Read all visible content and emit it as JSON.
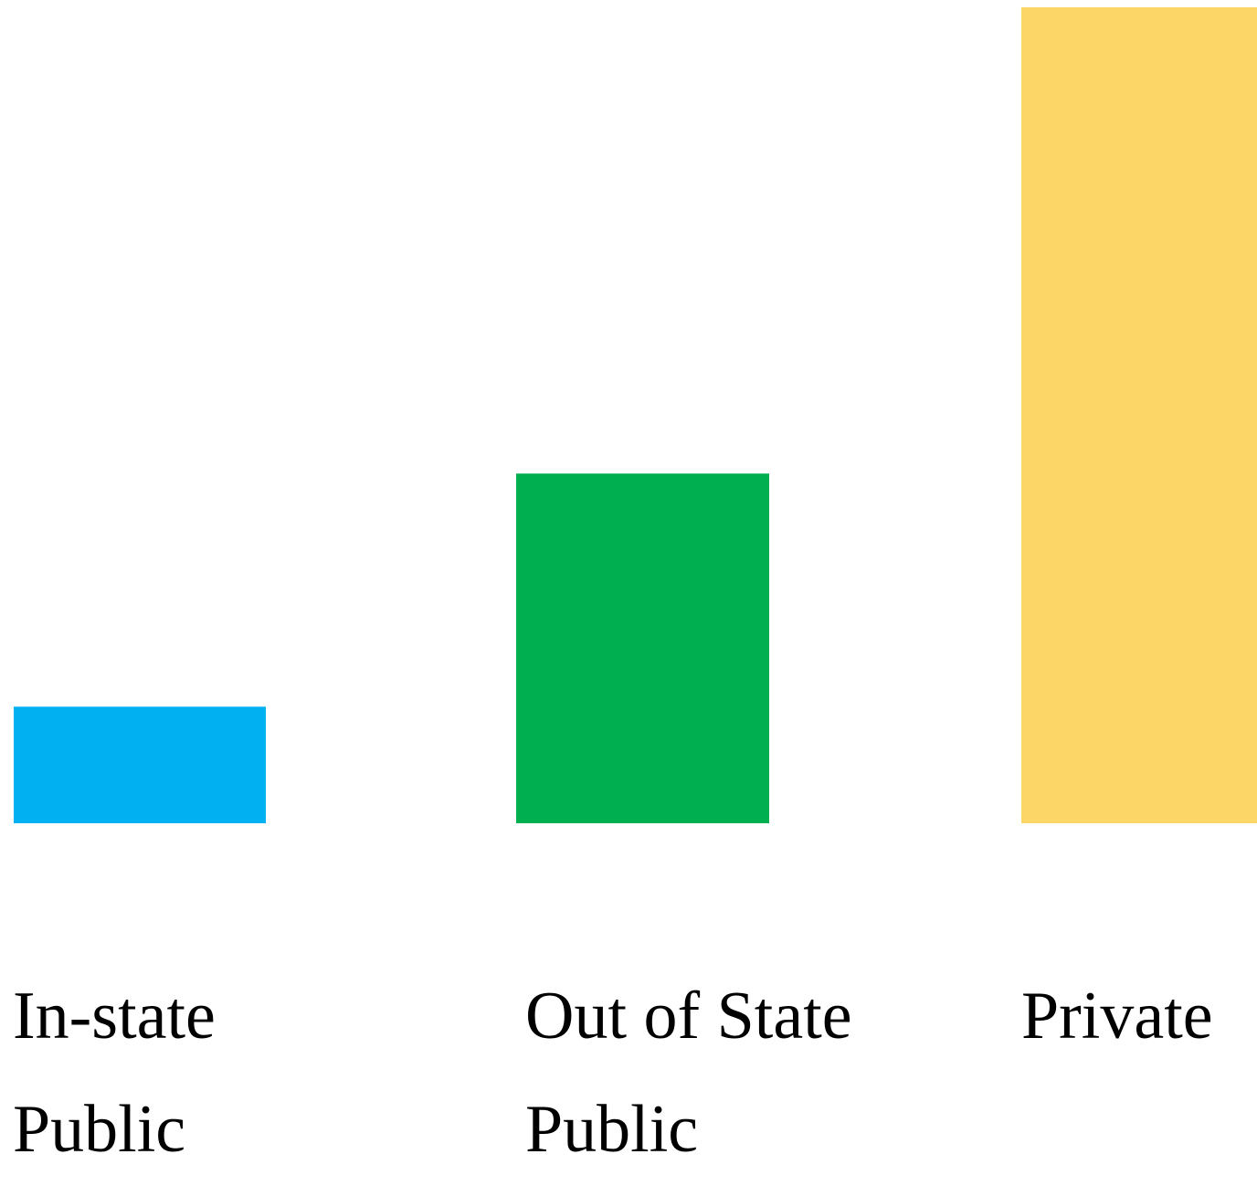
{
  "chart_data": {
    "type": "bar",
    "categories": [
      "In-state\nPublic",
      "Out of State\nPublic",
      "Private"
    ],
    "values": [
      1,
      3,
      7
    ],
    "colors": [
      "#00b0f0",
      "#00b050",
      "#fcd667"
    ],
    "title": "",
    "xlabel": "",
    "ylabel": "",
    "ylim": [
      0,
      7
    ],
    "grid": false,
    "axes_visible": false,
    "legend": "none"
  }
}
